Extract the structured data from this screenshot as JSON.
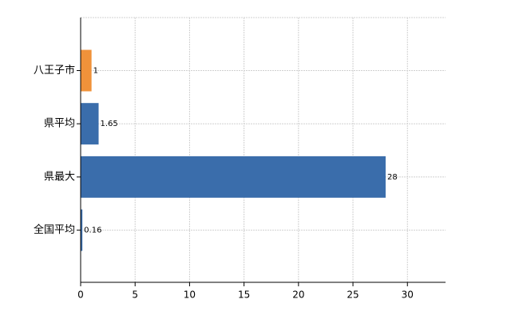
{
  "chart_data": {
    "type": "bar",
    "orientation": "horizontal",
    "categories": [
      "八王子市",
      "県平均",
      "県最大",
      "全国平均"
    ],
    "values": [
      1,
      1.65,
      28,
      0.16
    ],
    "colors": [
      "#f0923a",
      "#3a6dab",
      "#3a6dab",
      "#3a6dab"
    ],
    "xlim": [
      0,
      33.5
    ],
    "xticks": [
      0,
      5,
      10,
      15,
      20,
      25,
      30
    ],
    "grid": true
  }
}
